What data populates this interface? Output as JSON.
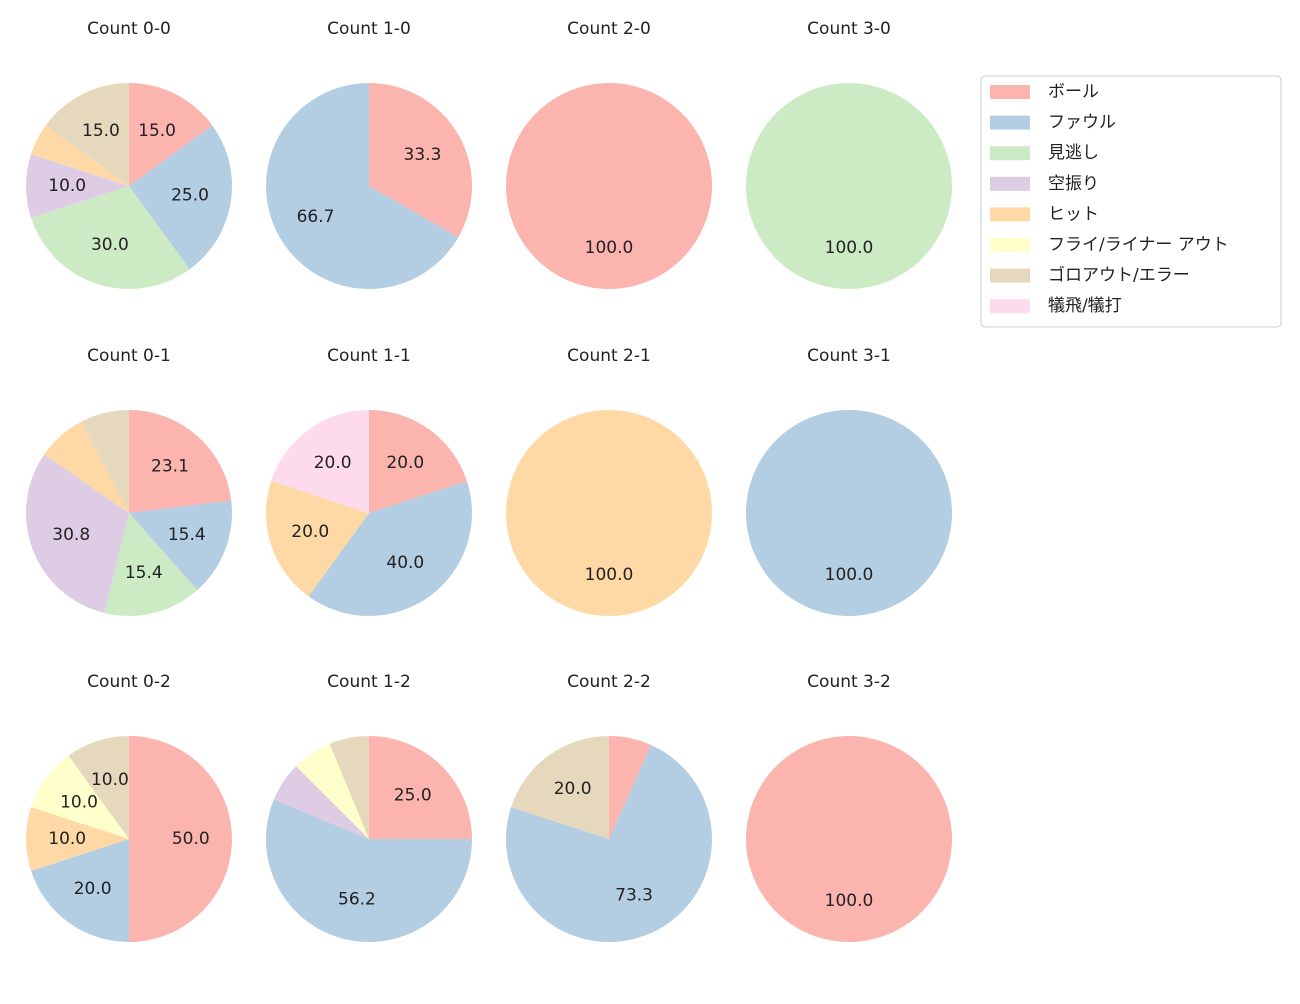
{
  "legend": {
    "labels": [
      "ボール",
      "ファウル",
      "見逃し",
      "空振り",
      "ヒット",
      "フライ/ライナー アウト",
      "ゴロアウト/エラー",
      "犠飛/犠打"
    ],
    "colors": [
      "#fbb4ae",
      "#b3cde3",
      "#ccebc5",
      "#decbe4",
      "#fed9a6",
      "#ffffcc",
      "#e5d8bd",
      "#fddaec"
    ]
  },
  "chart_data": [
    {
      "type": "pie",
      "title": "Count 0-0",
      "values": [
        15,
        25,
        30,
        10,
        5,
        0,
        15,
        0
      ],
      "value_labels": [
        "15.0",
        "25.0",
        "30.0",
        "10.0",
        null,
        null,
        "15.0",
        null
      ]
    },
    {
      "type": "pie",
      "title": "Count 1-0",
      "values": [
        33.3,
        66.7,
        0,
        0,
        0,
        0,
        0,
        0
      ],
      "value_labels": [
        "33.3",
        "66.7",
        null,
        null,
        null,
        null,
        null,
        null
      ]
    },
    {
      "type": "pie",
      "title": "Count 2-0",
      "values": [
        100,
        0,
        0,
        0,
        0,
        0,
        0,
        0
      ],
      "value_labels": [
        "100.0",
        null,
        null,
        null,
        null,
        null,
        null,
        null
      ]
    },
    {
      "type": "pie",
      "title": "Count 3-0",
      "values": [
        0,
        0,
        100,
        0,
        0,
        0,
        0,
        0
      ],
      "value_labels": [
        null,
        null,
        "100.0",
        null,
        null,
        null,
        null,
        null
      ]
    },
    {
      "type": "pie",
      "title": "Count 0-1",
      "values": [
        23.1,
        15.4,
        15.4,
        30.8,
        7.7,
        0,
        7.7,
        0
      ],
      "value_labels": [
        "23.1",
        "15.4",
        "15.4",
        "30.8",
        null,
        null,
        null,
        null
      ]
    },
    {
      "type": "pie",
      "title": "Count 1-1",
      "values": [
        20,
        40,
        0,
        0,
        20,
        0,
        0,
        20
      ],
      "value_labels": [
        "20.0",
        "40.0",
        null,
        null,
        "20.0",
        null,
        null,
        "20.0"
      ]
    },
    {
      "type": "pie",
      "title": "Count 2-1",
      "values": [
        0,
        0,
        0,
        0,
        100,
        0,
        0,
        0
      ],
      "value_labels": [
        null,
        null,
        null,
        null,
        "100.0",
        null,
        null,
        null
      ]
    },
    {
      "type": "pie",
      "title": "Count 3-1",
      "values": [
        0,
        100,
        0,
        0,
        0,
        0,
        0,
        0
      ],
      "value_labels": [
        null,
        "100.0",
        null,
        null,
        null,
        null,
        null,
        null
      ]
    },
    {
      "type": "pie",
      "title": "Count 0-2",
      "values": [
        50,
        20,
        0,
        0,
        10,
        10,
        10,
        0
      ],
      "value_labels": [
        "50.0",
        "20.0",
        null,
        null,
        "10.0",
        "10.0",
        "10.0",
        null
      ]
    },
    {
      "type": "pie",
      "title": "Count 1-2",
      "values": [
        25,
        56.2,
        0,
        6.25,
        0,
        6.25,
        6.25,
        0
      ],
      "value_labels": [
        "25.0",
        "56.2",
        null,
        null,
        null,
        null,
        null,
        null
      ]
    },
    {
      "type": "pie",
      "title": "Count 2-2",
      "values": [
        6.7,
        73.3,
        0,
        0,
        0,
        0,
        20,
        0
      ],
      "value_labels": [
        null,
        "73.3",
        null,
        null,
        null,
        null,
        "20.0",
        null
      ]
    },
    {
      "type": "pie",
      "title": "Count 3-2",
      "values": [
        100,
        0,
        0,
        0,
        0,
        0,
        0,
        0
      ],
      "value_labels": [
        "100.0",
        null,
        null,
        null,
        null,
        null,
        null,
        null
      ]
    }
  ]
}
